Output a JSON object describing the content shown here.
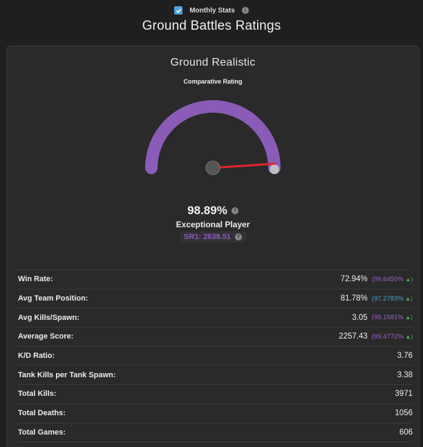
{
  "header": {
    "monthly_stats_label": "Monthly Stats",
    "title": "Ground Battles Ratings"
  },
  "card": {
    "title": "Ground Realistic",
    "subtitle": "Comparative Rating",
    "gauge_fraction": 0.9889,
    "rating_percent": "98.89%",
    "player_class": "Exceptional Player",
    "sr_label": "SR1: 2638.51"
  },
  "colors": {
    "accent_purple": "#8a5cb8",
    "needle_red": "#e0262b",
    "pct_purple": "#9a62c8",
    "pct_blue": "#4a9fd4",
    "up_green": "#4fbf4f"
  },
  "stats": [
    {
      "label": "Win Rate:",
      "value": "72.94%",
      "pct": "(99.6450%",
      "arrow": "▲)",
      "pct_color": "#9a62c8"
    },
    {
      "label": "Avg Team Position:",
      "value": "81.78%",
      "pct": "(97.2783%",
      "arrow": "▲)",
      "pct_color": "#4a9fd4"
    },
    {
      "label": "Avg Kills/Spawn:",
      "value": "3.05",
      "pct": "(99.1581%",
      "arrow": "▲)",
      "pct_color": "#9a62c8"
    },
    {
      "label": "Average Score:",
      "value": "2257.43",
      "pct": "(99.4772%",
      "arrow": "▲)",
      "pct_color": "#9a62c8"
    },
    {
      "label": "K/D Ratio:",
      "value": "3.76"
    },
    {
      "label": "Tank Kills per Tank Spawn:",
      "value": "3.38"
    },
    {
      "label": "Total Kills:",
      "value": "3971"
    },
    {
      "label": "Total Deaths:",
      "value": "1056"
    },
    {
      "label": "Total Games:",
      "value": "606"
    }
  ]
}
